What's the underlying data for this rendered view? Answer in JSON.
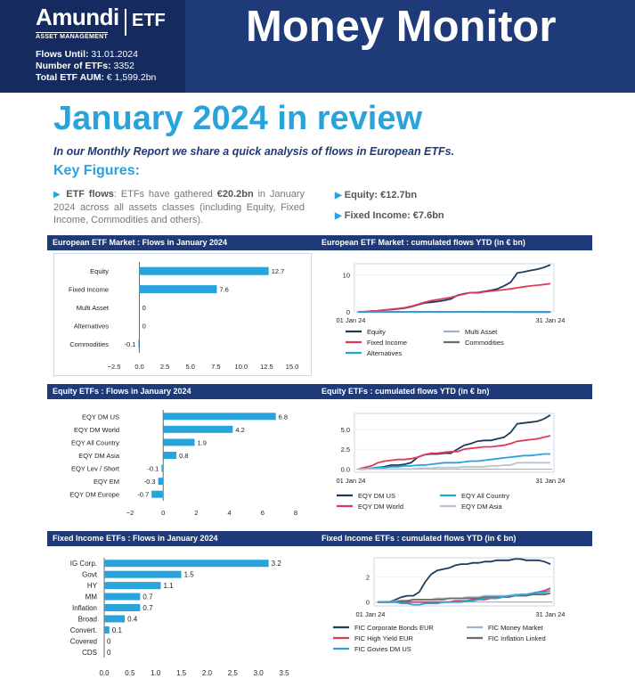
{
  "header": {
    "brand": "Amundi",
    "brand_sub": "ASSET MANAGEMENT",
    "brand_etf": "ETF",
    "flows_until_label": "Flows Until:",
    "flows_until": "31.01.2024",
    "num_etfs_label": "Number of ETFs:",
    "num_etfs": "3352",
    "aum_label": "Total ETF AUM:",
    "aum": "€ 1,599.2bn",
    "title": "Money Monitor",
    "bg_color": "#1f3a78"
  },
  "review": {
    "title": "January 2024 in review",
    "intro": "In our Monthly Report we share a quick analysis of flows in European ETFs.",
    "key_figures": "Key Figures:",
    "etf_flows_label": "ETF flows",
    "etf_flows_text_a": ": ETFs have gathered ",
    "etf_flows_value": "€20.2bn",
    "etf_flows_text_b": " in January 2024 across all assets classes (including Equity, Fixed Income, Commodities and others).",
    "equity": "Equity: €12.7bn",
    "fixed_income": "Fixed Income: €7.6bn",
    "accent": "#29a3dc"
  },
  "sections": {
    "market_flows": "European ETF Market : Flows in January 2024",
    "market_cum": "European ETF Market : cumulated flows  YTD (in € bn)",
    "equity_flows": "Equity ETFs : Flows in January 2024",
    "equity_cum": "Equity ETFs : cumulated flows YTD (in € bn)",
    "fi_flows": "Fixed Income ETFs : Flows in January 2024",
    "fi_cum": "Fixed Income ETFs : cumulated flows YTD (in € bn)"
  },
  "chart_data": [
    {
      "id": "market_bar",
      "type": "bar",
      "orientation": "horizontal",
      "categories": [
        "Equity",
        "Fixed Income",
        "Multi Asset",
        "Alternatives",
        "Commodities"
      ],
      "values": [
        12.7,
        7.6,
        0,
        0,
        -0.1
      ],
      "data_labels": [
        "12.7",
        "7.6",
        "0",
        "0",
        "-0.1"
      ],
      "xlim": [
        -2.5,
        15.0
      ],
      "xticks": [
        -2.5,
        0.0,
        2.5,
        5.0,
        7.5,
        10.0,
        12.5,
        15.0
      ],
      "xtick_labels": [
        "−2.5",
        "0.0",
        "2.5",
        "5.0",
        "7.5",
        "10.0",
        "12.5",
        "15.0"
      ],
      "color": "#29a3dc"
    },
    {
      "id": "market_line",
      "type": "line",
      "x_labels": [
        "01 Jan 24",
        "31 Jan 24"
      ],
      "ylim": [
        0,
        13
      ],
      "yticks": [
        0,
        10
      ],
      "ytick_labels": [
        "0",
        "10"
      ],
      "series": [
        {
          "name": "Equity",
          "color": "#1b3a5c",
          "values": [
            0,
            0,
            0.2,
            0.3,
            0.5,
            0.6,
            0.8,
            1.0,
            1.4,
            1.9,
            2.4,
            2.6,
            2.8,
            3.1,
            3.5,
            4.5,
            4.9,
            5.2,
            5.2,
            5.5,
            5.8,
            6.2,
            7.0,
            8.0,
            10.5,
            10.8,
            11.2,
            11.5,
            12.0,
            12.7
          ]
        },
        {
          "name": "Multi Asset",
          "color": "#9fb3c8",
          "values": [
            0,
            0,
            0,
            0,
            0,
            0,
            0,
            0,
            0,
            0,
            0,
            0,
            0,
            0,
            0,
            0,
            0,
            0,
            0,
            0,
            0,
            0,
            0,
            0,
            0,
            0,
            0,
            0,
            0,
            0
          ]
        },
        {
          "name": "Fixed Income",
          "color": "#e0395b",
          "values": [
            0,
            0.1,
            0.2,
            0.3,
            0.5,
            0.7,
            0.9,
            1.1,
            1.5,
            2.0,
            2.6,
            3.0,
            3.3,
            3.6,
            3.9,
            4.4,
            4.8,
            5.2,
            5.1,
            5.4,
            5.6,
            5.8,
            6.0,
            6.2,
            6.5,
            6.8,
            7.0,
            7.2,
            7.4,
            7.6
          ]
        },
        {
          "name": "Commodities",
          "color": "#6b6b6b",
          "values": [
            0,
            0,
            0,
            0,
            0,
            0,
            0,
            0,
            0,
            0,
            0,
            0,
            0,
            0,
            0,
            0,
            0,
            0,
            0,
            -0.05,
            -0.05,
            -0.05,
            -0.05,
            -0.05,
            -0.1,
            -0.1,
            -0.1,
            -0.1,
            -0.1,
            -0.1
          ]
        },
        {
          "name": "Alternatives",
          "color": "#29a3dc",
          "values": [
            0,
            0,
            0,
            0,
            0,
            0,
            0,
            0,
            0,
            0,
            0,
            0,
            0,
            0,
            0,
            0,
            0,
            0,
            0,
            0,
            0,
            0,
            0,
            0,
            0,
            0,
            0,
            0,
            0,
            0
          ]
        }
      ]
    },
    {
      "id": "equity_bar",
      "type": "bar",
      "orientation": "horizontal",
      "categories": [
        "EQY DM US",
        "EQY DM World",
        "EQY All Country",
        "EQY DM Asia",
        "EQY Lev / Short",
        "EQY EM",
        "EQY DM Europe"
      ],
      "values": [
        6.8,
        4.2,
        1.9,
        0.8,
        -0.1,
        -0.3,
        -0.7
      ],
      "data_labels": [
        "6.8",
        "4.2",
        "1.9",
        "0.8",
        "-0.1",
        "-0.3",
        "-0.7"
      ],
      "xlim": [
        -2,
        8
      ],
      "xticks": [
        -2,
        0,
        2,
        4,
        6,
        8
      ],
      "xtick_labels": [
        "−2",
        "0",
        "2",
        "4",
        "6",
        "8"
      ],
      "color": "#29a3dc"
    },
    {
      "id": "equity_line",
      "type": "line",
      "x_labels": [
        "01 Jan 24",
        "31 Jan 24"
      ],
      "ylim": [
        -0.4,
        7
      ],
      "yticks": [
        0.0,
        2.5,
        5.0
      ],
      "ytick_labels": [
        "0.0",
        "2.5",
        "5.0"
      ],
      "series": [
        {
          "name": "EQY DM US",
          "color": "#1b3a5c",
          "values": [
            0,
            0,
            0.1,
            0.2,
            0.3,
            0.5,
            0.5,
            0.6,
            0.8,
            1.5,
            1.8,
            1.9,
            1.9,
            2.0,
            2.0,
            2.5,
            3.0,
            3.2,
            3.5,
            3.6,
            3.6,
            3.8,
            4.0,
            4.6,
            5.7,
            5.8,
            5.9,
            6.0,
            6.3,
            6.8
          ]
        },
        {
          "name": "EQY All Country",
          "color": "#29a3dc",
          "values": [
            0,
            0,
            0.1,
            0.2,
            0.2,
            0.3,
            0.3,
            0.4,
            0.4,
            0.5,
            0.5,
            0.6,
            0.7,
            0.8,
            0.8,
            0.8,
            0.9,
            1.0,
            1.0,
            1.1,
            1.2,
            1.3,
            1.4,
            1.5,
            1.6,
            1.7,
            1.7,
            1.8,
            1.9,
            1.9
          ]
        },
        {
          "name": "EQY DM World",
          "color": "#e0395b",
          "values": [
            0,
            0.2,
            0.4,
            0.8,
            1.0,
            1.1,
            1.2,
            1.2,
            1.3,
            1.5,
            1.8,
            2.0,
            2.0,
            2.1,
            2.2,
            2.2,
            2.5,
            2.6,
            2.7,
            2.8,
            2.8,
            2.9,
            3.0,
            3.2,
            3.5,
            3.6,
            3.7,
            3.8,
            4.0,
            4.2
          ]
        },
        {
          "name": "EQY DM Asia",
          "color": "#b7c3d1",
          "values": [
            0,
            0,
            0,
            0,
            0,
            0,
            0,
            0,
            0,
            0.1,
            0.1,
            0.1,
            0.2,
            0.2,
            0.2,
            0.2,
            0.3,
            0.3,
            0.3,
            0.3,
            0.4,
            0.4,
            0.5,
            0.5,
            0.8,
            0.8,
            0.8,
            0.8,
            0.8,
            0.8
          ]
        }
      ]
    },
    {
      "id": "fi_bar",
      "type": "bar",
      "orientation": "horizontal",
      "categories": [
        "IG Corp.",
        "Govt",
        "HY",
        "MM",
        "Inflation",
        "Broad",
        "Convert.",
        "Covered",
        "CDS"
      ],
      "values": [
        3.2,
        1.5,
        1.1,
        0.7,
        0.7,
        0.4,
        0.1,
        0,
        0
      ],
      "data_labels": [
        "3.2",
        "1.5",
        "1.1",
        "0.7",
        "0.7",
        "0.4",
        "0.1",
        "0",
        "0"
      ],
      "xlim": [
        0,
        3.5
      ],
      "xticks": [
        0,
        0.5,
        1.0,
        1.5,
        2.0,
        2.5,
        3.0,
        3.5
      ],
      "xtick_labels": [
        "0.0",
        "0.5",
        "1.0",
        "1.5",
        "2.0",
        "2.5",
        "3.0",
        "3.5"
      ],
      "color": "#29a3dc"
    },
    {
      "id": "fi_line",
      "type": "line",
      "x_labels": [
        "01 Jan 24",
        "31 Jan 24"
      ],
      "ylim": [
        -0.3,
        3.5
      ],
      "yticks": [
        0,
        2
      ],
      "ytick_labels": [
        "0",
        "2"
      ],
      "series": [
        {
          "name": "FIC Corporate Bonds EUR",
          "color": "#1b3a5c",
          "values": [
            0,
            0,
            0,
            0.2,
            0.4,
            0.5,
            0.5,
            0.8,
            1.6,
            2.2,
            2.5,
            2.6,
            2.7,
            2.9,
            3.0,
            3.0,
            3.1,
            3.1,
            3.2,
            3.2,
            3.3,
            3.3,
            3.3,
            3.4,
            3.4,
            3.3,
            3.3,
            3.3,
            3.2,
            3.0
          ]
        },
        {
          "name": "FIC Money Market",
          "color": "#9fb3c8",
          "values": [
            0,
            0,
            0,
            0.1,
            0.1,
            0.1,
            0.2,
            0.2,
            0.2,
            0.2,
            0.3,
            0.3,
            0.3,
            0.3,
            0.3,
            0.4,
            0.4,
            0.4,
            0.5,
            0.5,
            0.5,
            0.5,
            0.5,
            0.6,
            0.6,
            0.6,
            0.6,
            0.7,
            0.7,
            0.7
          ]
        },
        {
          "name": "FIC High Yield EUR",
          "color": "#e0395b",
          "values": [
            0,
            0,
            0,
            0,
            0,
            0,
            0,
            0,
            0,
            0,
            0,
            0,
            0,
            0.1,
            0.1,
            0.1,
            0.2,
            0.2,
            0.2,
            0.3,
            0.3,
            0.4,
            0.4,
            0.5,
            0.5,
            0.6,
            0.7,
            0.8,
            0.9,
            1.1
          ]
        },
        {
          "name": "FIC Inflation Linked",
          "color": "#6b6b6b",
          "values": [
            0,
            0,
            0,
            0,
            0.1,
            0.1,
            0.2,
            0.2,
            0.2,
            0.2,
            0.2,
            0.2,
            0.3,
            0.3,
            0.3,
            0.3,
            0.3,
            0.3,
            0.4,
            0.4,
            0.4,
            0.4,
            0.4,
            0.5,
            0.5,
            0.5,
            0.6,
            0.6,
            0.6,
            0.7
          ]
        },
        {
          "name": "FIC Govies DM US",
          "color": "#29a3dc",
          "values": [
            0,
            0,
            0,
            0,
            -0.1,
            -0.1,
            -0.2,
            -0.2,
            -0.1,
            -0.1,
            -0.1,
            0,
            0,
            0,
            0,
            0.1,
            0.1,
            0.2,
            0.3,
            0.3,
            0.3,
            0.4,
            0.5,
            0.5,
            0.6,
            0.6,
            0.7,
            0.8,
            0.8,
            0.9
          ]
        }
      ]
    }
  ]
}
